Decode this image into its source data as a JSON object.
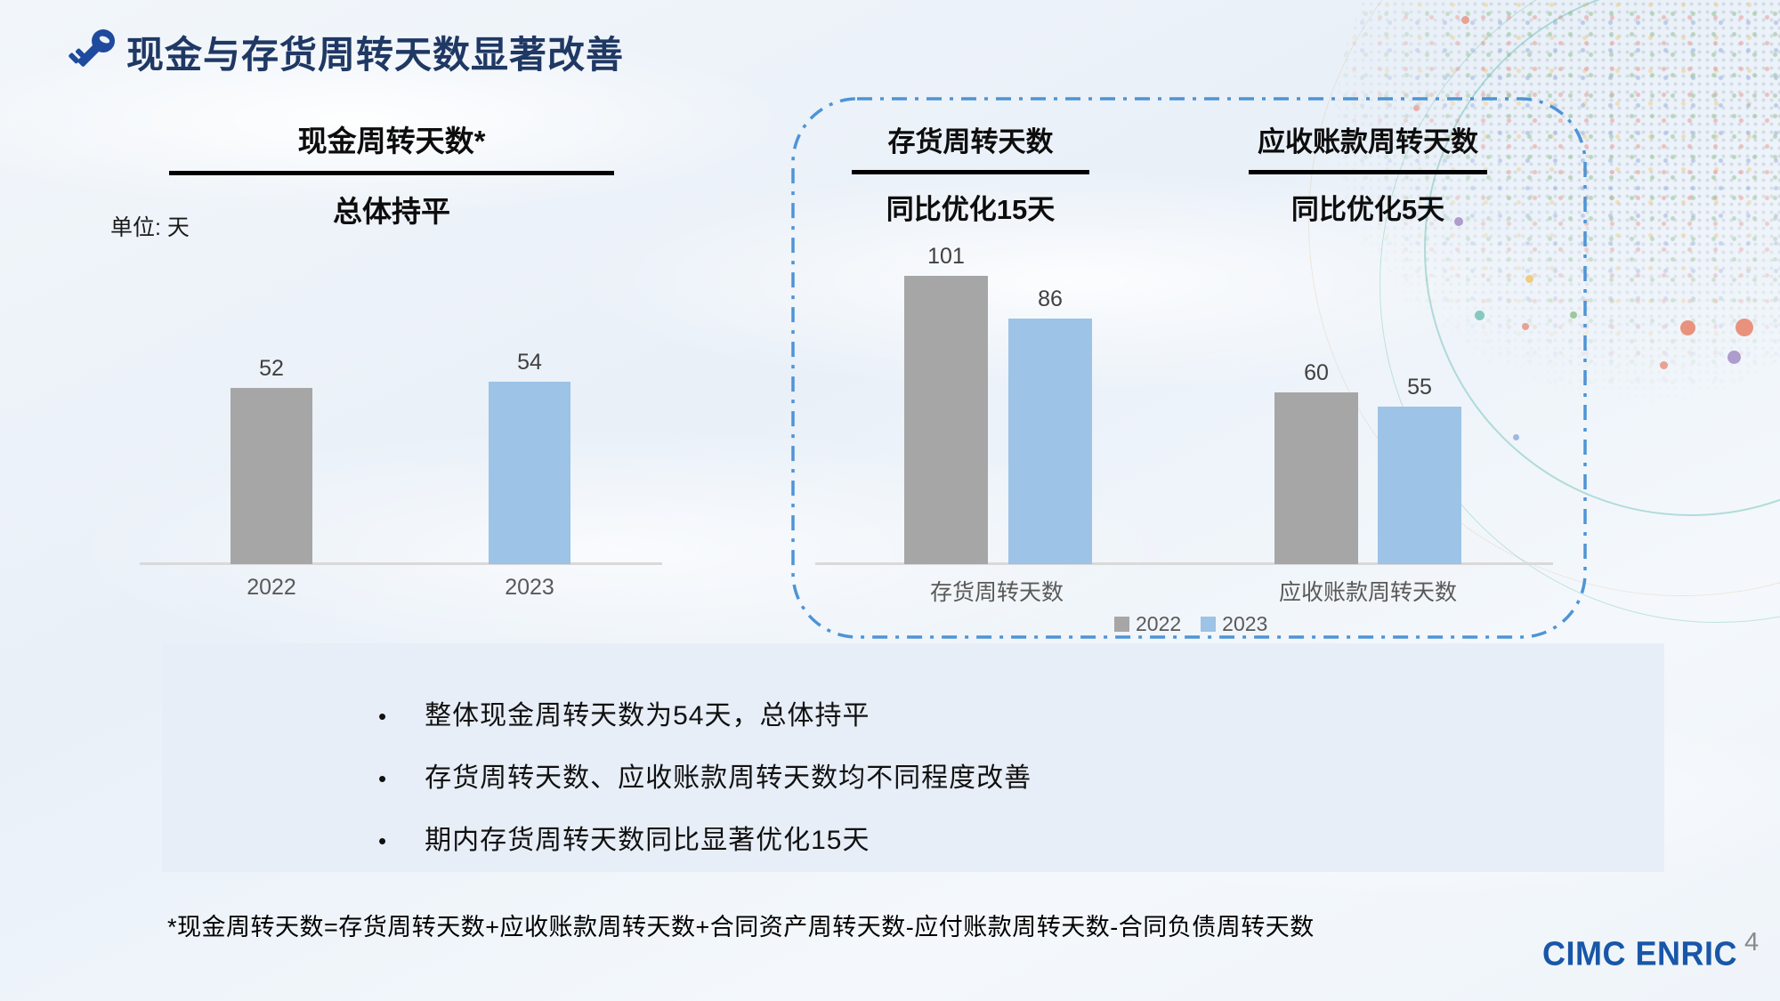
{
  "header": {
    "title": "现金与存货周转天数显著改善"
  },
  "chart_data": [
    {
      "type": "bar",
      "title": "现金周转天数*",
      "subtitle": "总体持平",
      "unit_label": "单位: 天",
      "categories": [
        "2022",
        "2023"
      ],
      "values": [
        52,
        54
      ],
      "colors": [
        "#A6A6A6",
        "#9DC3E6"
      ],
      "ylim": [
        0,
        60
      ],
      "grid": false,
      "value_labels_shown": true
    },
    {
      "type": "bar",
      "panel_headers": [
        {
          "title": "存货周转天数",
          "subtitle": "同比优化15天"
        },
        {
          "title": "应收账款周转天数",
          "subtitle": "同比优化5天"
        }
      ],
      "categories": [
        "存货周转天数",
        "应收账款周转天数"
      ],
      "series": [
        {
          "name": "2022",
          "color": "#A6A6A6",
          "values": [
            101,
            60
          ]
        },
        {
          "name": "2023",
          "color": "#9DC3E6",
          "values": [
            86,
            55
          ]
        }
      ],
      "ylim": [
        0,
        110
      ],
      "grid": false,
      "legend_position": "bottom"
    }
  ],
  "summary": {
    "bullets": [
      "整体现金周转天数为54天，总体持平",
      "存货周转天数、应收账款周转天数均不同程度改善",
      "期内存货周转天数同比显著优化15天"
    ]
  },
  "footnote": "*现金周转天数=存货周转天数+应收账款周转天数+合同资产周转天数-应付账款周转天数-合同负债周转天数",
  "footer": {
    "logo_text": "CIMC ENRIC",
    "page_number": "4"
  },
  "colors": {
    "accent_navy": "#1F3864",
    "bar_2022": "#A6A6A6",
    "bar_2023": "#9DC3E6",
    "dashed_border": "#4E94D6",
    "summary_bg": "#E8EEF7",
    "logo_blue": "#1857A8",
    "baseline_gray": "#D9D9D9"
  }
}
